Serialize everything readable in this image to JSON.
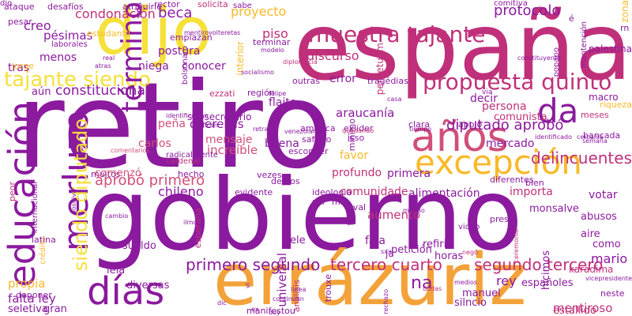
{
  "palette": {
    "purple": "#8b1a9e",
    "magenta": "#c0307a",
    "rose": "#d04f7a",
    "orange": "#f3a23a",
    "amber": "#f9b928",
    "yellow": "#f6e03a",
    "pink": "#e36e9a"
  },
  "words": [
    {
      "text": "retiro",
      "color": "#8b1a9e",
      "weight": 100
    },
    {
      "text": "gobierno",
      "color": "#8b1a9e",
      "weight": 95
    },
    {
      "text": "españa",
      "color": "#c0307a",
      "weight": 85
    },
    {
      "text": "errázuriz",
      "color": "#f3a23a",
      "weight": 75
    },
    {
      "text": "dijo",
      "color": "#f6e03a",
      "weight": 70
    },
    {
      "text": "educación",
      "color": "#8b1a9e",
      "weight": 55
    },
    {
      "text": "merluzo",
      "color": "#8b1a9e",
      "weight": 50
    },
    {
      "text": "años",
      "color": "#d04f7a",
      "weight": 48
    },
    {
      "text": "excepción",
      "color": "#f9b928",
      "weight": 46
    },
    {
      "text": "días",
      "color": "#8b1a9e",
      "weight": 44
    },
    {
      "text": "da",
      "color": "#8b1a9e",
      "weight": 42
    },
    {
      "text": "muestra tajante",
      "color": "#c0307a",
      "weight": 40
    },
    {
      "text": "propuesta quinto",
      "color": "#c0307a",
      "weight": 36
    },
    {
      "text": "tajante siendo",
      "color": "#f6e03a",
      "weight": 34
    },
    {
      "text": "siendo diputado",
      "color": "#f6e03a",
      "weight": 34
    },
    {
      "text": "diputado aprobó",
      "color": "#8b1a9e",
      "weight": 30
    },
    {
      "text": "primero segundo",
      "color": "#8b1a9e",
      "weight": 28
    },
    {
      "text": "tercero cuarto",
      "color": "#c0307a",
      "weight": 28
    },
    {
      "text": "segundo tercero",
      "color": "#c0307a",
      "weight": 28
    },
    {
      "text": "constitucional",
      "color": "#8b1a9e",
      "weight": 22
    },
    {
      "text": "término",
      "color": "#8b1a9e",
      "weight": 22
    },
    {
      "text": "delincuentes",
      "color": "#c0307a",
      "weight": 22
    },
    {
      "text": "aprobó primero",
      "color": "#d04f7a",
      "weight": 20
    },
    {
      "text": "protocolo",
      "color": "#8b1a9e",
      "weight": 18
    },
    {
      "text": "proyecto",
      "color": "#f9b928",
      "weight": 18
    },
    {
      "text": "condonación",
      "color": "#c0307a",
      "weight": 18
    },
    {
      "text": "discurso",
      "color": "#c0307a",
      "weight": 18
    },
    {
      "text": "araucanía",
      "color": "#8b1a9e",
      "weight": 18
    },
    {
      "text": "querellas",
      "color": "#8b1a9e",
      "weight": 18
    },
    {
      "text": "increíble",
      "color": "#d04f7a",
      "weight": 18
    },
    {
      "text": "pésimas",
      "color": "#8b1a9e",
      "weight": 18
    },
    {
      "text": "piso",
      "color": "#c0307a",
      "weight": 18
    },
    {
      "text": "beca",
      "color": "#8b1a9e",
      "weight": 18
    },
    {
      "text": "chileno",
      "color": "#8b1a9e",
      "weight": 18
    },
    {
      "text": "mario",
      "color": "#8b1a9e",
      "weight": 18
    },
    {
      "text": "rey",
      "color": "#8b1a9e",
      "weight": 18
    },
    {
      "text": "mentiroso",
      "color": "#c0307a",
      "weight": 18
    },
    {
      "text": "propia",
      "color": "#f9b928",
      "weight": 18
    },
    {
      "text": "falta ley",
      "color": "#8b1a9e",
      "weight": 18
    },
    {
      "text": "aumento",
      "color": "#c0307a",
      "weight": 18
    },
    {
      "text": "universal",
      "color": "#8b1a9e",
      "weight": 18
    },
    {
      "text": "creo",
      "color": "#8b1a9e",
      "weight": 16
    },
    {
      "text": "tras",
      "color": "#8b1a9e",
      "weight": 16
    },
    {
      "text": "menos",
      "color": "#8b1a9e",
      "weight": 16
    },
    {
      "text": "aún",
      "color": "#8b1a9e",
      "weight": 14
    },
    {
      "text": "postura",
      "color": "#8b1a9e",
      "weight": 14
    },
    {
      "text": "niega",
      "color": "#8b1a9e",
      "weight": 14
    },
    {
      "text": "conocer",
      "color": "#8b1a9e",
      "weight": 14
    },
    {
      "text": "error",
      "color": "#8b1a9e",
      "weight": 16
    },
    {
      "text": "flaite",
      "color": "#8b1a9e",
      "weight": 16
    },
    {
      "text": "buena",
      "color": "#8b1a9e",
      "weight": 16
    },
    {
      "text": "mensaje",
      "color": "#d04f7a",
      "weight": 16
    },
    {
      "text": "carlos",
      "color": "#d04f7a",
      "weight": 16
    },
    {
      "text": "peña",
      "color": "#d04f7a",
      "weight": 16
    },
    {
      "text": "decir",
      "color": "#8b1a9e",
      "weight": 16
    },
    {
      "text": "persona",
      "color": "#c0307a",
      "weight": 16
    },
    {
      "text": "comunista",
      "color": "#c0307a",
      "weight": 14
    },
    {
      "text": "mercado",
      "color": "#8b1a9e",
      "weight": 16
    },
    {
      "text": "favor",
      "color": "#f9b928",
      "weight": 16
    },
    {
      "text": "profundo",
      "color": "#c0307a",
      "weight": 16
    },
    {
      "text": "primera",
      "color": "#8b1a9e",
      "weight": 16
    },
    {
      "text": "comunidade",
      "color": "#c0307a",
      "weight": 16
    },
    {
      "text": "alimentación",
      "color": "#8b1a9e",
      "weight": 16
    },
    {
      "text": "importa",
      "color": "#c0307a",
      "weight": 16
    },
    {
      "text": "votar",
      "color": "#8b1a9e",
      "weight": 16
    },
    {
      "text": "fala",
      "color": "#8b1a9e",
      "weight": 16
    },
    {
      "text": "ele",
      "color": "#8b1a9e",
      "weight": 14
    },
    {
      "text": "refirió",
      "color": "#8b1a9e",
      "weight": 14
    },
    {
      "text": "horas",
      "color": "#8b1a9e",
      "weight": 14
    },
    {
      "text": "petición",
      "color": "#8b1a9e",
      "weight": 14
    },
    {
      "text": "españoles",
      "color": "#8b1a9e",
      "weight": 14
    },
    {
      "text": "manuel",
      "color": "#8b1a9e",
      "weight": 14
    },
    {
      "text": "silncio",
      "color": "#8b1a9e",
      "weight": 14
    },
    {
      "text": "estallido",
      "color": "#c0307a",
      "weight": 14
    },
    {
      "text": "hicimos",
      "color": "#8b1a9e",
      "weight": 14
    },
    {
      "text": "abusos",
      "color": "#8b1a9e",
      "weight": 14
    },
    {
      "text": "aire",
      "color": "#8b1a9e",
      "weight": 14
    },
    {
      "text": "como",
      "color": "#8b1a9e",
      "weight": 14
    },
    {
      "text": "karadima",
      "color": "#c0307a",
      "weight": 14
    },
    {
      "text": "sueldo",
      "color": "#8b1a9e",
      "weight": 14
    },
    {
      "text": "leia",
      "color": "#8b1a9e",
      "weight": 14
    },
    {
      "text": "diversas",
      "color": "#8b1a9e",
      "weight": 14
    },
    {
      "text": "gran",
      "color": "#8b1a9e",
      "weight": 14
    },
    {
      "text": "seletiva",
      "color": "#8b1a9e",
      "weight": 14
    },
    {
      "text": "muitos",
      "color": "#8b1a9e",
      "weight": 12
    },
    {
      "text": "hecho",
      "color": "#8b1a9e",
      "weight": 12
    },
    {
      "text": "vezes",
      "color": "#8b1a9e",
      "weight": 12
    },
    {
      "text": "evidente",
      "color": "#8b1a9e",
      "weight": 12
    },
    {
      "text": "ideologia",
      "color": "#8b1a9e",
      "weight": 12
    },
    {
      "text": "diferentes",
      "color": "#8b1a9e",
      "weight": 12
    },
    {
      "text": "bien",
      "color": "#8b1a9e",
      "weight": 12
    },
    {
      "text": "comenzó",
      "color": "#d04f7a",
      "weight": 14
    },
    {
      "text": "subsecretario",
      "color": "#8b1a9e",
      "weight": 14
    },
    {
      "text": "región",
      "color": "#8b1a9e",
      "weight": 12
    },
    {
      "text": "américa",
      "color": "#8b1a9e",
      "weight": 12
    },
    {
      "text": "saffirio",
      "color": "#8b1a9e",
      "weight": 12
    },
    {
      "text": "esconder",
      "color": "#8b1a9e",
      "weight": 12
    },
    {
      "text": "exlider",
      "color": "#8b1a9e",
      "weight": 12
    },
    {
      "text": "isso",
      "color": "#8b1a9e",
      "weight": 12
    },
    {
      "text": "clara",
      "color": "#8b1a9e",
      "weight": 12
    },
    {
      "text": "apoio",
      "color": "#8b1a9e",
      "weight": 12
    },
    {
      "text": "bancada",
      "color": "#8b1a9e",
      "weight": 12
    },
    {
      "text": "macro",
      "color": "#8b1a9e",
      "weight": 12
    },
    {
      "text": "riqueza",
      "color": "#f9b928",
      "weight": 12
    },
    {
      "text": "meses",
      "color": "#c0307a",
      "weight": 12
    },
    {
      "text": "zona",
      "color": "#f9b928",
      "weight": 12
    },
    {
      "text": "palestina",
      "color": "#8b1a9e",
      "weight": 12
    },
    {
      "text": "rn",
      "color": "#8b1a9e",
      "weight": 12
    },
    {
      "text": "é",
      "color": "#8b1a9e",
      "weight": 12
    },
    {
      "text": "mantención",
      "color": "#8b1a9e",
      "weight": 12
    },
    {
      "text": "popapo",
      "color": "#8b1a9e",
      "weight": 10
    },
    {
      "text": "perpetuam",
      "color": "#c0307a",
      "weight": 10
    },
    {
      "text": "tragédias",
      "color": "#8b1a9e",
      "weight": 12
    },
    {
      "text": "outras",
      "color": "#8b1a9e",
      "weight": 12
    },
    {
      "text": "ataque",
      "color": "#8b1a9e",
      "weight": 12
    },
    {
      "text": "desafíos",
      "color": "#8b1a9e",
      "weight": 12
    },
    {
      "text": "atribuirle",
      "color": "#8b1a9e",
      "weight": 12
    },
    {
      "text": "rector",
      "color": "#8b1a9e",
      "weight": 12
    },
    {
      "text": "solicita",
      "color": "#c0307a",
      "weight": 12
    },
    {
      "text": "sabe",
      "color": "#8b1a9e",
      "weight": 12
    },
    {
      "text": "comitiva",
      "color": "#8b1a9e",
      "weight": 10
    },
    {
      "text": "pesar",
      "color": "#8b1a9e",
      "weight": 10
    },
    {
      "text": "estudantil",
      "color": "#f9b928",
      "weight": 12
    },
    {
      "text": "nós",
      "color": "#8b1a9e",
      "weight": 12
    },
    {
      "text": "terminar",
      "color": "#8b1a9e",
      "weight": 12
    },
    {
      "text": "emplazan",
      "color": "#8b1a9e",
      "weight": 12
    },
    {
      "text": "jorge",
      "color": "#f9b928",
      "weight": 12
    },
    {
      "text": "laborales",
      "color": "#8b1a9e",
      "weight": 12
    },
    {
      "text": "interior",
      "color": "#f9b928",
      "weight": 12
    },
    {
      "text": "ezzati",
      "color": "#c0307a",
      "weight": 12
    },
    {
      "text": "tem",
      "color": "#8b1a9e",
      "weight": 12
    },
    {
      "text": "peor",
      "color": "#c0307a",
      "weight": 12
    },
    {
      "text": "internacional",
      "color": "#8b1a9e",
      "weight": 12
    },
    {
      "text": "crédito",
      "color": "#f9b928",
      "weight": 10
    },
    {
      "text": "latina",
      "color": "#8b1a9e",
      "weight": 10
    },
    {
      "text": "deponer",
      "color": "#8b1a9e",
      "weight": 12
    },
    {
      "text": "delitos",
      "color": "#8b1a9e",
      "weight": 12
    },
    {
      "text": "mil",
      "color": "#8b1a9e",
      "weight": 12
    },
    {
      "text": "aval",
      "color": "#8b1a9e",
      "weight": 12
    },
    {
      "text": "monsalve",
      "color": "#8b1a9e",
      "weight": 12
    },
    {
      "text": "na",
      "color": "#8b1a9e",
      "weight": 14
    },
    {
      "text": "ja",
      "color": "#8b1a9e",
      "weight": 20
    },
    {
      "text": "sur",
      "color": "#8b1a9e",
      "weight": 12
    },
    {
      "text": "fue",
      "color": "#8b1a9e",
      "weight": 12
    },
    {
      "text": "esperana",
      "color": "#c0307a",
      "weight": 12
    },
    {
      "text": "radicalmente",
      "color": "#8b1a9e",
      "weight": 12
    },
    {
      "text": "cardenal",
      "color": "#c0307a",
      "weight": 10
    },
    {
      "text": "mínimo",
      "color": "#8b1a9e",
      "weight": 10
    },
    {
      "text": "presi",
      "color": "#8b1a9e",
      "weight": 12
    },
    {
      "text": "video",
      "color": "#8b1a9e",
      "weight": 12
    },
    {
      "text": "análisis",
      "color": "#c0307a",
      "weight": 10
    },
    {
      "text": "trouxe",
      "color": "#8b1a9e",
      "weight": 12
    },
    {
      "text": "manifestou",
      "color": "#8b1a9e",
      "weight": 12
    },
    {
      "text": "neste",
      "color": "#8b1a9e",
      "weight": 12
    },
    {
      "text": "via",
      "color": "#8b1a9e",
      "weight": 12
    },
    {
      "text": "bolsonaro",
      "color": "#8b1a9e",
      "weight": 10
    },
    {
      "text": "diplomacia",
      "color": "#c0307a",
      "weight": 10
    },
    {
      "text": "socialismo",
      "color": "#8b1a9e",
      "weight": 8
    },
    {
      "text": "felipe",
      "color": "#8b1a9e",
      "weight": 8
    },
    {
      "text": "constituyente",
      "color": "#8b1a9e",
      "weight": 8
    },
    {
      "text": "comentarios",
      "color": "#d04f7a",
      "weight": 8
    },
    {
      "text": "mentirovolteretas",
      "color": "#8b1a9e",
      "weight": 8
    },
    {
      "text": "identificado",
      "color": "#8b1a9e",
      "weight": 8
    },
    {
      "text": "identificación",
      "color": "#8b1a9e",
      "weight": 8
    },
    {
      "text": "ratifican",
      "color": "#8b1a9e",
      "weight": 8
    },
    {
      "text": "retraso",
      "color": "#8b1a9e",
      "weight": 8
    },
    {
      "text": "tiempo",
      "color": "#8b1a9e",
      "weight": 8
    },
    {
      "text": "quedando",
      "color": "#c0307a",
      "weight": 8
    },
    {
      "text": "cercanía",
      "color": "#8b1a9e",
      "weight": 8
    },
    {
      "text": "semana",
      "color": "#8b1a9e",
      "weight": 8
    },
    {
      "text": "casa",
      "color": "#8b1a9e",
      "weight": 8
    },
    {
      "text": "atras",
      "color": "#8b1a9e",
      "weight": 8
    },
    {
      "text": "modelo",
      "color": "#8b1a9e",
      "weight": 8
    },
    {
      "text": "cambio",
      "color": "#8b1a9e",
      "weight": 8
    },
    {
      "text": "ilmo",
      "color": "#8b1a9e",
      "weight": 8
    },
    {
      "text": "positiva",
      "color": "#8b1a9e",
      "weight": 8
    },
    {
      "text": "venezolano",
      "color": "#8b1a9e",
      "weight": 8
    },
    {
      "text": "sxxi",
      "color": "#8b1a9e",
      "weight": 8
    },
    {
      "text": "mando",
      "color": "#8b1a9e",
      "weight": 8
    },
    {
      "text": "negó",
      "color": "#c0307a",
      "weight": 8
    },
    {
      "text": "dudas",
      "color": "#c0307a",
      "weight": 8
    },
    {
      "text": "dic",
      "color": "#8b1a9e",
      "weight": 8
    },
    {
      "text": "continúan",
      "color": "#8b1a9e",
      "weight": 8
    },
    {
      "text": "rechazo",
      "color": "#8b1a9e",
      "weight": 8
    },
    {
      "text": "medios",
      "color": "#8b1a9e",
      "weight": 8
    },
    {
      "text": "ceremonia",
      "color": "#c0307a",
      "weight": 8
    },
    {
      "text": "vicepresidente",
      "color": "#8b1a9e",
      "weight": 8
    },
    {
      "text": "real",
      "color": "#8b1a9e",
      "weight": 8
    },
    {
      "text": "ex",
      "color": "#8b1a9e",
      "weight": 8
    },
    {
      "text": "doy",
      "color": "#8b1a9e",
      "weight": 8
    },
    {
      "text": "vi",
      "color": "#8b1a9e",
      "weight": 8
    },
    {
      "text": "linea",
      "color": "#8b1a9e",
      "weight": 8
    },
    {
      "text": "dio",
      "color": "#8b1a9e",
      "weight": 8
    }
  ]
}
